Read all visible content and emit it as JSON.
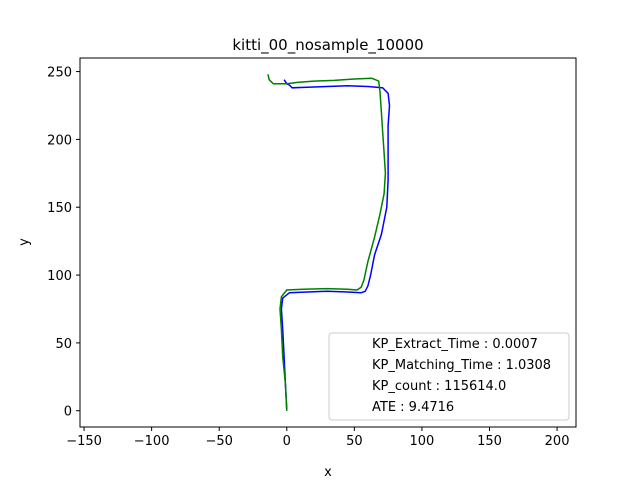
{
  "chart_data": {
    "type": "line",
    "title": "kitti_00_nosample_10000",
    "xlabel": "x",
    "ylabel": "y",
    "xlim": [
      -153,
      214
    ],
    "ylim": [
      -12,
      260
    ],
    "xticks": [
      -150,
      -100,
      -50,
      0,
      50,
      100,
      150,
      200
    ],
    "yticks": [
      0,
      50,
      100,
      150,
      200,
      250
    ],
    "grid": false,
    "legend_position": "bottom-right",
    "legend_entries": [
      "KP_Extract_Time : 0.0007",
      "KP_Matching_Time : 1.0308",
      "KP_count : 115614.0",
      "ATE : 9.4716"
    ],
    "series": [
      {
        "color": "#0000ff",
        "points": [
          [
            0,
            0
          ],
          [
            -1,
            20
          ],
          [
            -2,
            40
          ],
          [
            -3,
            60
          ],
          [
            -4,
            75
          ],
          [
            -3,
            83
          ],
          [
            2,
            87
          ],
          [
            15,
            87.5
          ],
          [
            30,
            88
          ],
          [
            45,
            87.5
          ],
          [
            55,
            87
          ],
          [
            58,
            88
          ],
          [
            60,
            92
          ],
          [
            62,
            100
          ],
          [
            65,
            115
          ],
          [
            70,
            130
          ],
          [
            74,
            150
          ],
          [
            75,
            170
          ],
          [
            75,
            190
          ],
          [
            75,
            210
          ],
          [
            76,
            225
          ],
          [
            75,
            234
          ],
          [
            71,
            238
          ],
          [
            60,
            239
          ],
          [
            45,
            239.5
          ],
          [
            30,
            239
          ],
          [
            15,
            238.5
          ],
          [
            4,
            238
          ],
          [
            2,
            240
          ],
          [
            0,
            241
          ],
          [
            -2,
            244
          ]
        ]
      },
      {
        "color": "#008000",
        "points": [
          [
            0,
            0
          ],
          [
            -1,
            20
          ],
          [
            -3,
            40
          ],
          [
            -4,
            60
          ],
          [
            -5,
            75
          ],
          [
            -4,
            84
          ],
          [
            0,
            89
          ],
          [
            12,
            89.5
          ],
          [
            30,
            90
          ],
          [
            45,
            89.5
          ],
          [
            52,
            89
          ],
          [
            55,
            91
          ],
          [
            57,
            96
          ],
          [
            60,
            110
          ],
          [
            65,
            128
          ],
          [
            69,
            145
          ],
          [
            72,
            160
          ],
          [
            73,
            175
          ],
          [
            72,
            190
          ],
          [
            71,
            205
          ],
          [
            70,
            220
          ],
          [
            69,
            235
          ],
          [
            68,
            243
          ],
          [
            63,
            245
          ],
          [
            50,
            244.5
          ],
          [
            35,
            243.5
          ],
          [
            20,
            243
          ],
          [
            8,
            242
          ],
          [
            0,
            241
          ],
          [
            -10,
            241
          ],
          [
            -13,
            244
          ],
          [
            -14,
            248
          ]
        ]
      }
    ]
  }
}
